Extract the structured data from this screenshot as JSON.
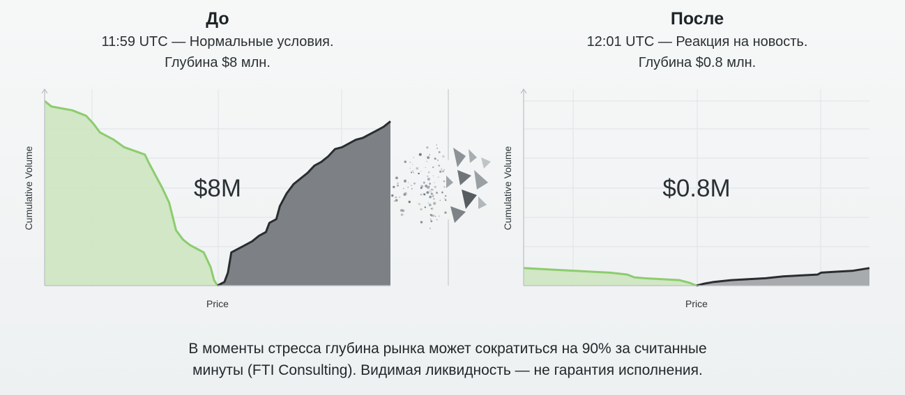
{
  "panels": [
    {
      "title": "До",
      "subtitle_line1": "11:59 UTC — Нормальные условия.",
      "subtitle_line2": "Глубина $8 млн.",
      "center_label": "$8M",
      "ylabel": "Cumulative Volume",
      "xlabel": "Price"
    },
    {
      "title": "После",
      "subtitle_line1": "12:01 UTC — Реакция на новость.",
      "subtitle_line2": "Глубина $0.8 млн.",
      "center_label": "$0.8M",
      "ylabel": "Cumulative Volume",
      "xlabel": "Price"
    }
  ],
  "caption": {
    "line1": "В моменты стресса глубина рынка может сократиться на 90% за считанные",
    "line2": "минуты (FTI Consulting). Видимая ликвидность — не гарантия исполнения."
  },
  "colors": {
    "bid_fill": "#cfe6c2",
    "bid_line": "#8ccc6e",
    "ask_fill": "#7d8185",
    "ask_line": "#2a2d30"
  },
  "chart_data": [
    {
      "type": "area",
      "title": "До",
      "xlabel": "Price",
      "ylabel": "Cumulative Volume",
      "xlim": [
        0,
        100
      ],
      "ylim": [
        0,
        100
      ],
      "grid": true,
      "series": [
        {
          "x": [
            0,
            2,
            5,
            8,
            12,
            14,
            16,
            18,
            20,
            23,
            26,
            29,
            30,
            32,
            34,
            36,
            38,
            40,
            42,
            44,
            46,
            48,
            49,
            50
          ],
          "values": [
            100,
            97,
            96,
            95,
            92,
            88,
            83,
            81,
            79,
            75,
            73,
            71,
            67,
            60,
            53,
            45,
            30,
            25,
            22,
            20,
            18,
            10,
            3,
            0
          ]
        },
        {
          "x": [
            50,
            52,
            53,
            54,
            57,
            60,
            62,
            64,
            65,
            67,
            68,
            70,
            72,
            74,
            76,
            78,
            80,
            82,
            84,
            86,
            88,
            90,
            92,
            94,
            96,
            98,
            100
          ],
          "values": [
            0,
            2,
            7,
            18,
            21,
            24,
            27,
            29,
            34,
            36,
            43,
            50,
            55,
            58,
            61,
            65,
            67,
            70,
            74,
            75,
            77,
            79,
            80,
            82,
            84,
            86,
            89
          ]
        }
      ]
    },
    {
      "type": "area",
      "title": "После",
      "xlabel": "Price",
      "ylabel": "Cumulative Volume",
      "xlim": [
        0,
        100
      ],
      "ylim": [
        0,
        100
      ],
      "grid": true,
      "series": [
        {
          "x": [
            0,
            5,
            10,
            15,
            20,
            25,
            30,
            32,
            35,
            40,
            45,
            48,
            50
          ],
          "values": [
            9.5,
            9,
            8.5,
            8,
            7.5,
            7,
            6,
            4.5,
            4,
            3.5,
            3,
            1.5,
            0
          ]
        },
        {
          "x": [
            50,
            52,
            55,
            60,
            65,
            70,
            75,
            80,
            85,
            86,
            90,
            95,
            100
          ],
          "values": [
            0,
            1,
            2,
            3,
            3.5,
            4,
            5,
            5.5,
            6,
            7,
            7.5,
            8,
            9.5
          ]
        }
      ]
    }
  ]
}
